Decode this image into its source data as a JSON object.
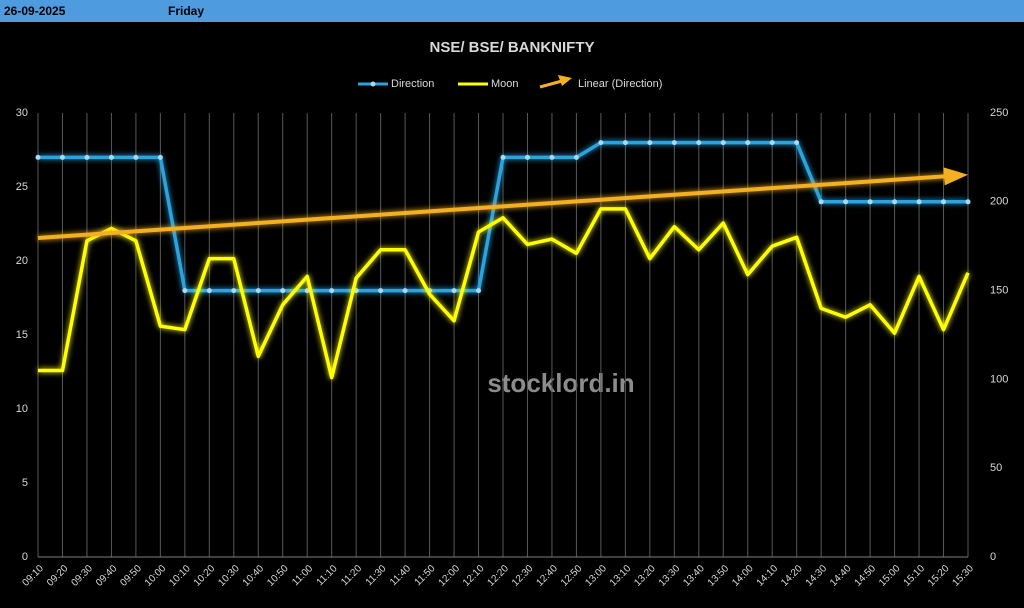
{
  "header": {
    "date": "26-09-2025",
    "day": "Friday"
  },
  "chart_data": {
    "type": "line",
    "title": "NSE/ BSE/ BANKNIFTY",
    "categories": [
      "09:10",
      "09:20",
      "09:30",
      "09:40",
      "09:50",
      "10:00",
      "10:10",
      "10:20",
      "10:30",
      "10:40",
      "10:50",
      "11:00",
      "11:10",
      "11:20",
      "11:30",
      "11:40",
      "11:50",
      "12:00",
      "12:10",
      "12:20",
      "12:30",
      "12:40",
      "12:50",
      "13:00",
      "13:10",
      "13:20",
      "13:30",
      "13:40",
      "13:50",
      "14:00",
      "14:10",
      "14:20",
      "14:30",
      "14:40",
      "14:50",
      "15:00",
      "15:10",
      "15:20",
      "15:30"
    ],
    "series": [
      {
        "name": "Direction",
        "color": "#29a3de",
        "values": [
          27,
          27,
          27,
          27,
          27,
          27,
          18,
          18,
          18,
          18,
          18,
          18,
          18,
          18,
          18,
          18,
          18,
          18,
          18,
          27,
          27,
          27,
          27,
          28,
          28,
          28,
          28,
          28,
          28,
          28,
          28,
          28,
          24,
          24,
          24,
          24,
          24,
          24,
          24
        ]
      },
      {
        "name": "Moon",
        "color": "#ffff00",
        "axis": "y2",
        "values": [
          105,
          105,
          178,
          185,
          178,
          130,
          128,
          168,
          168,
          113,
          142,
          158,
          101,
          157,
          173,
          173,
          148,
          133,
          183,
          191,
          176,
          179,
          171,
          196,
          196,
          168,
          186,
          173,
          188,
          159,
          175,
          180,
          140,
          135,
          142,
          126,
          158,
          128,
          160
        ]
      }
    ],
    "trendline": {
      "name": "Linear (Direction)",
      "series": 0,
      "color": "#f5b021"
    },
    "ylim": [
      0,
      30
    ],
    "yticks": [
      0,
      5,
      10,
      15,
      20,
      25,
      30
    ],
    "y2lim": [
      0,
      250
    ],
    "y2ticks": [
      0,
      50,
      100,
      150,
      200,
      250
    ],
    "grid": "x",
    "legend": "top",
    "watermark": "stocklord.in"
  }
}
